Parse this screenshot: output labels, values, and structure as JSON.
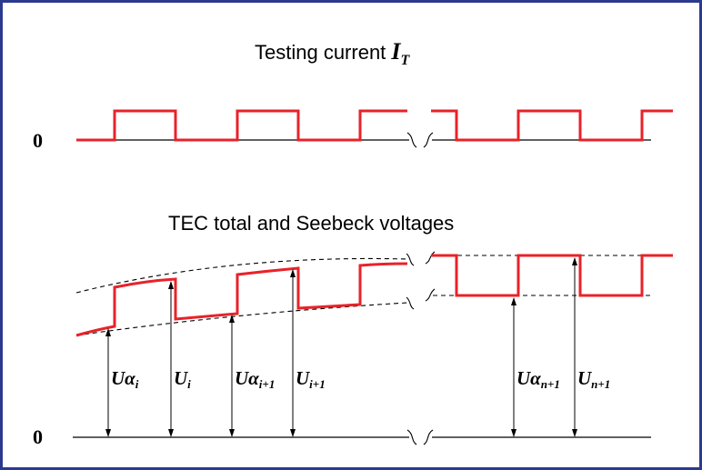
{
  "frame_color": "#2b3a8f",
  "signal_color": "#e8222a",
  "top": {
    "title_prefix": "Testing current ",
    "title_symbol": "I",
    "title_subscript": "T",
    "zero_label": "0"
  },
  "bottom": {
    "title": "TEC total and Seebeck voltages",
    "zero_label": "0",
    "labels": [
      {
        "main": "Uα",
        "sub": "i"
      },
      {
        "main": "U",
        "sub": "i"
      },
      {
        "main": "Uα",
        "sub": "i+1"
      },
      {
        "main": "U",
        "sub": "i+1"
      },
      {
        "main": "Uα",
        "sub": "n+1"
      },
      {
        "main": "U",
        "sub": "n+1"
      }
    ]
  }
}
